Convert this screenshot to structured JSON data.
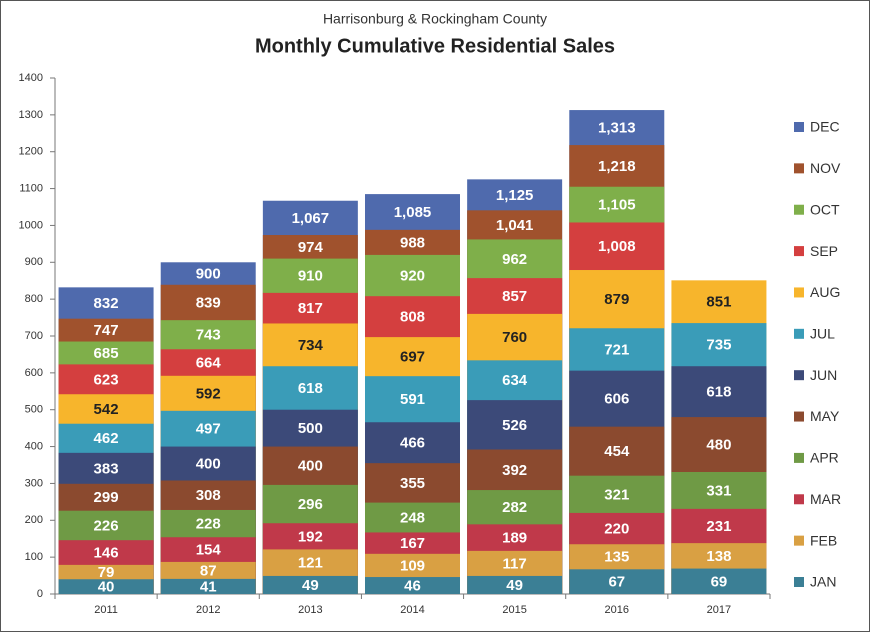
{
  "chart_data": {
    "type": "bar",
    "layout": "overlapping",
    "subtitle": "Harrisonburg & Rockingham County",
    "title": "Monthly Cumulative Residential Sales",
    "categories": [
      "2011",
      "2012",
      "2013",
      "2014",
      "2015",
      "2016",
      "2017"
    ],
    "ylim": [
      0,
      1400
    ],
    "yticks": [
      0,
      100,
      200,
      300,
      400,
      500,
      600,
      700,
      800,
      900,
      1000,
      1100,
      1200,
      1300,
      1400
    ],
    "series": [
      {
        "name": "JAN",
        "color": "#3b7f95",
        "label_color": "#ffffff",
        "values": [
          40,
          41,
          49,
          46,
          49,
          67,
          69
        ]
      },
      {
        "name": "FEB",
        "color": "#d9a043",
        "label_color": "#ffffff",
        "values": [
          79,
          87,
          121,
          109,
          117,
          135,
          138
        ]
      },
      {
        "name": "MAR",
        "color": "#c0394a",
        "label_color": "#ffffff",
        "values": [
          146,
          154,
          192,
          167,
          189,
          220,
          231
        ]
      },
      {
        "name": "APR",
        "color": "#6f9a45",
        "label_color": "#ffffff",
        "values": [
          226,
          228,
          296,
          248,
          282,
          321,
          331
        ]
      },
      {
        "name": "MAY",
        "color": "#8b4a2f",
        "label_color": "#ffffff",
        "values": [
          299,
          308,
          400,
          355,
          392,
          454,
          480
        ]
      },
      {
        "name": "JUN",
        "color": "#3c4a79",
        "label_color": "#ffffff",
        "values": [
          383,
          400,
          500,
          466,
          526,
          606,
          618
        ]
      },
      {
        "name": "JUL",
        "color": "#3a9cb8",
        "label_color": "#ffffff",
        "values": [
          462,
          497,
          618,
          591,
          634,
          721,
          735
        ]
      },
      {
        "name": "AUG",
        "color": "#f7b52c",
        "label_color": "#222222",
        "values": [
          542,
          592,
          734,
          697,
          760,
          879,
          851
        ]
      },
      {
        "name": "SEP",
        "color": "#d43f3f",
        "label_color": "#ffffff",
        "values": [
          623,
          664,
          817,
          808,
          857,
          1008,
          null
        ],
        "value_labels": [
          "623",
          "664",
          "817",
          "808",
          "857",
          "1,008",
          null
        ]
      },
      {
        "name": "OCT",
        "color": "#7faf4a",
        "label_color": "#ffffff",
        "values": [
          685,
          743,
          910,
          920,
          962,
          1105,
          null
        ],
        "value_labels": [
          "685",
          "743",
          "910",
          "920",
          "962",
          "1,105",
          null
        ]
      },
      {
        "name": "NOV",
        "color": "#a0522d",
        "label_color": "#ffffff",
        "values": [
          747,
          839,
          974,
          988,
          1041,
          1218,
          null
        ],
        "value_labels": [
          "747",
          "839",
          "974",
          "988",
          "1,041",
          "1,218",
          null
        ]
      },
      {
        "name": "DEC",
        "color": "#4f6aad",
        "label_color": "#ffffff",
        "values": [
          832,
          900,
          1067,
          1085,
          1125,
          1313,
          null
        ],
        "value_labels": [
          "832",
          "900",
          "1,067",
          "1,085",
          "1,125",
          "1,313",
          null
        ]
      }
    ]
  }
}
